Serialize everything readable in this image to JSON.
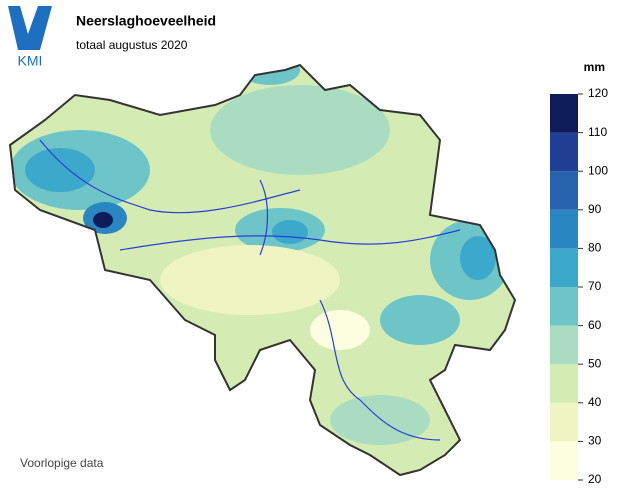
{
  "header": {
    "logo": "KMI",
    "title": "Neerslaghoeveelheid",
    "subtitle": "totaal augustus 2020"
  },
  "legend": {
    "unit": "mm",
    "ticks": [
      20,
      30,
      40,
      50,
      60,
      70,
      80,
      90,
      100,
      110,
      120
    ],
    "colors": [
      "#fdfde0",
      "#eef5c2",
      "#d4ecb4",
      "#a9dcc0",
      "#6ec5c8",
      "#3ca9cc",
      "#2a86c0",
      "#2662ae",
      "#213f94",
      "#0e1d5a"
    ]
  },
  "footnote": "Voorlopige data"
}
